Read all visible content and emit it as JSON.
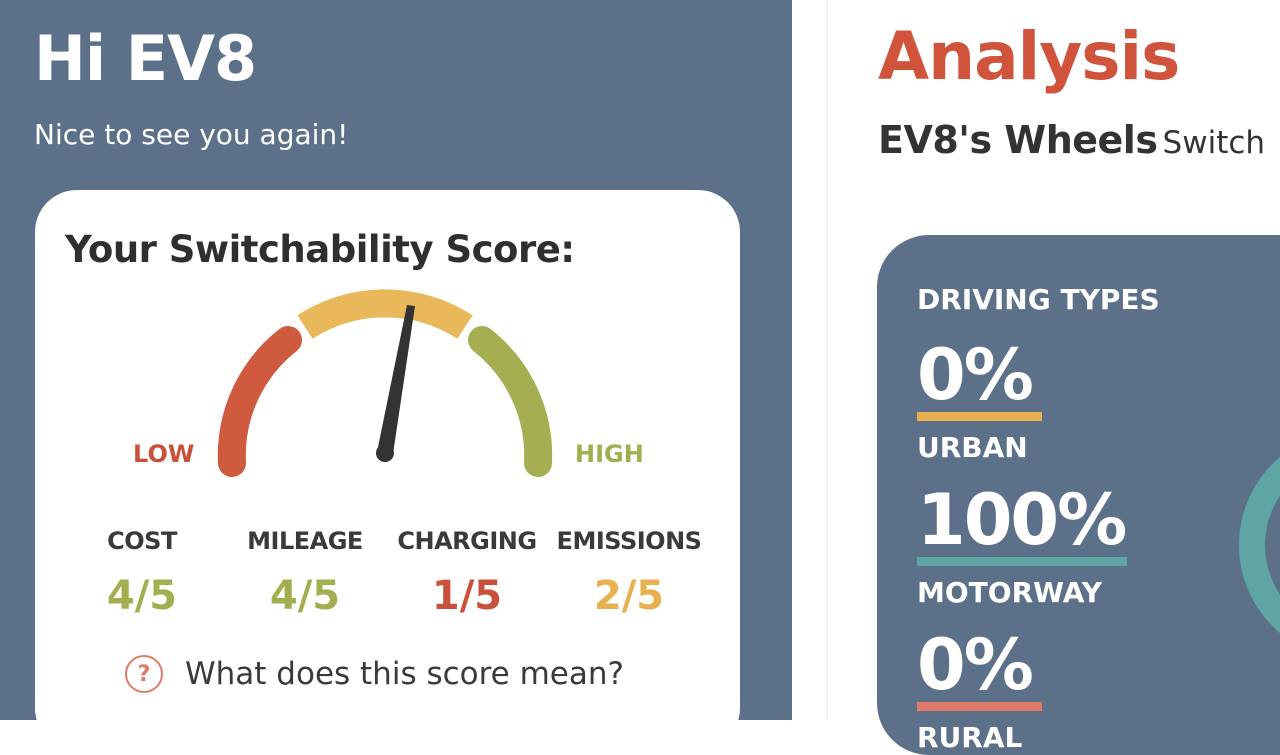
{
  "left": {
    "greeting": "Hi EV8",
    "subtitle": "Nice to see you again!",
    "score_card": {
      "title": "Your Switchability Score:",
      "gauge": {
        "low_label": "LOW",
        "high_label": "HIGH",
        "colors": {
          "low": "#cf5a3e",
          "mid": "#e8b85a",
          "high": "#a6ae52",
          "needle": "#333333"
        },
        "needle_level": 0.56
      },
      "metrics": [
        {
          "label": "COST",
          "value": "4/5",
          "color": "#a4ad50"
        },
        {
          "label": "MILEAGE",
          "value": "4/5",
          "color": "#a4ad50"
        },
        {
          "label": "CHARGING",
          "value": "1/5",
          "color": "#c9503a"
        },
        {
          "label": "EMISSIONS",
          "value": "2/5",
          "color": "#e8b04f"
        }
      ],
      "help_icon": "question-circle-icon",
      "help_text": "What does this score mean?"
    }
  },
  "right": {
    "title": "Analysis",
    "wheels_title": "EV8's Wheels",
    "wheels_sub": "Switch",
    "driving": {
      "title": "DRIVING TYPES",
      "types": [
        {
          "pct": "0%",
          "label": "URBAN",
          "color": "#e8b04f"
        },
        {
          "pct": "100%",
          "label": "MOTORWAY",
          "color": "#5fa5a3"
        },
        {
          "pct": "0%",
          "label": "RURAL",
          "color": "#e07b6a"
        }
      ]
    }
  }
}
